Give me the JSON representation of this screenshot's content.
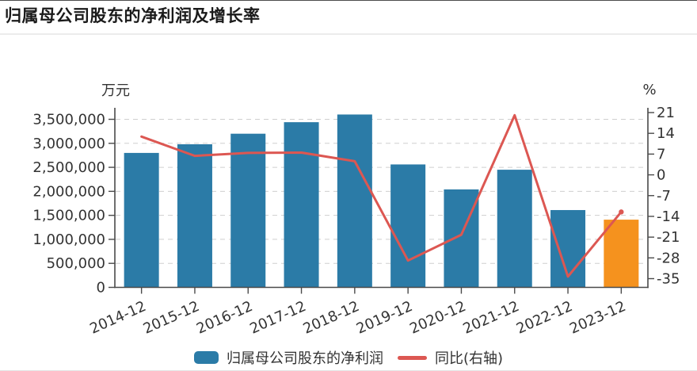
{
  "page": {
    "title": "归属母公司股东的净利润及增长率"
  },
  "legend": {
    "items": [
      {
        "label": "归属母公司股东的净利润",
        "marker": "bar-swatch",
        "color": "#2b7ba7"
      },
      {
        "label": "同比(右轴)",
        "marker": "line-swatch",
        "color": "#dc5752"
      }
    ]
  },
  "chart_data": {
    "type": "bar",
    "subtype": "bar+line dual-axis combo",
    "title": "归属母公司股东的净利润及增长率",
    "categories": [
      "2014-12",
      "2015-12",
      "2016-12",
      "2017-12",
      "2018-12",
      "2019-12",
      "2020-12",
      "2021-12",
      "2022-12",
      "2023-12"
    ],
    "series": [
      {
        "name": "归属母公司股东的净利润",
        "type": "bar",
        "axis": "left",
        "unit": "万元",
        "values": [
          2800000,
          2980000,
          3200000,
          3440000,
          3600000,
          2560000,
          2040000,
          2450000,
          1610000,
          1410000
        ],
        "color": "#2b7ba7",
        "last_bar_color": "#f5921e"
      },
      {
        "name": "同比(右轴)",
        "type": "line",
        "axis": "right",
        "unit": "%",
        "values": [
          12.9,
          6.4,
          7.4,
          7.5,
          4.6,
          -28.9,
          -20.2,
          20.1,
          -34.3,
          -12.5
        ],
        "color": "#dc5752"
      }
    ],
    "left_axis": {
      "title": "万元",
      "min": 0,
      "max": 3500000,
      "tick_step": 500000,
      "tick_labels": [
        "0",
        "500,000",
        "1,000,000",
        "1,500,000",
        "2,000,000",
        "2,500,000",
        "3,000,000",
        "3,500,000"
      ]
    },
    "right_axis": {
      "title": "%",
      "min": -35,
      "max": 21,
      "tick_step": 7,
      "tick_labels": [
        "21",
        "14",
        "7",
        "0",
        "-7",
        "-14",
        "-21",
        "-28",
        "-35"
      ]
    },
    "grid": {
      "horizontal": true,
      "style": "dashed"
    },
    "legend_position": "bottom"
  }
}
